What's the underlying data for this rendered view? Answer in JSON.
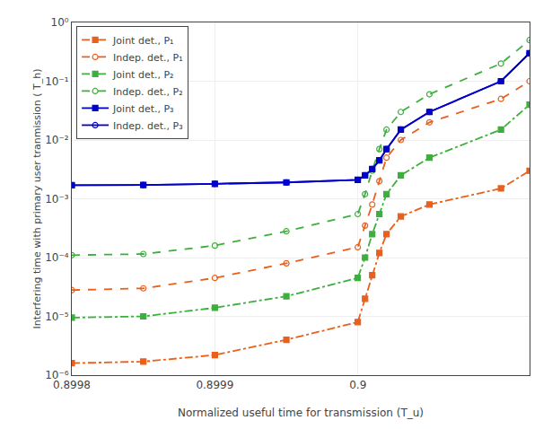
{
  "chart_data": {
    "type": "line",
    "xlabel": "Normalized useful time for transmission (T_u)",
    "ylabel": "Interfering time with primary user tranmission ( T_h)",
    "log": "y",
    "grid": true,
    "legend": "upper left",
    "xlim": [
      0.8998,
      0.90012
    ],
    "ylim": [
      1e-06,
      1.0
    ],
    "xticks": [
      0.8998,
      0.8999,
      0.9
    ],
    "yticks": [
      {
        "value": 1e-06,
        "label": "10⁻⁶"
      },
      {
        "value": 1e-05,
        "label": "10⁻⁵"
      },
      {
        "value": 0.0001,
        "label": "10⁻⁴"
      },
      {
        "value": 0.001,
        "label": "10⁻³"
      },
      {
        "value": 0.01,
        "label": "10⁻²"
      },
      {
        "value": 0.1,
        "label": "10⁻¹"
      },
      {
        "value": 1,
        "label": "10⁰"
      }
    ],
    "x": [
      0.8998,
      0.89985,
      0.8999,
      0.89995,
      0.8999999,
      0.900005,
      0.90001,
      0.900015,
      0.90002,
      0.90003,
      0.90005,
      0.9001,
      0.90012
    ],
    "series": [
      {
        "name": "Joint det., P₁",
        "color": "#e8601c",
        "line_style": "dashdot",
        "marker": "square",
        "values": [
          1.6e-06,
          1.7e-06,
          2.2e-06,
          4e-06,
          8e-06,
          2e-05,
          5e-05,
          0.00012,
          0.00025,
          0.0005,
          0.0008,
          0.0015,
          0.003
        ]
      },
      {
        "name": "Indep. det., P₁",
        "color": "#e8601c",
        "line_style": "dash",
        "marker": "circle-open",
        "values": [
          2.8e-05,
          3e-05,
          4.5e-05,
          8e-05,
          0.00015,
          0.00035,
          0.0008,
          0.002,
          0.005,
          0.01,
          0.02,
          0.05,
          0.1
        ]
      },
      {
        "name": "Joint det., P₂",
        "color": "#3daf3d",
        "line_style": "dashdot",
        "marker": "square",
        "values": [
          9.5e-06,
          1e-05,
          1.4e-05,
          2.2e-05,
          4.5e-05,
          0.0001,
          0.00025,
          0.00055,
          0.0012,
          0.0025,
          0.005,
          0.015,
          0.04
        ]
      },
      {
        "name": "Indep. det., P₂",
        "color": "#3daf3d",
        "line_style": "dash",
        "marker": "circle-open",
        "values": [
          0.00011,
          0.000115,
          0.00016,
          0.00028,
          0.00055,
          0.0012,
          0.003,
          0.007,
          0.015,
          0.03,
          0.06,
          0.2,
          0.5
        ]
      },
      {
        "name": "Joint det., P₃",
        "color": "#0000cc",
        "line_style": "solid",
        "marker": "square",
        "values": [
          0.0017,
          0.00172,
          0.0018,
          0.0019,
          0.0021,
          0.0025,
          0.0032,
          0.0045,
          0.007,
          0.015,
          0.03,
          0.1,
          0.3
        ]
      },
      {
        "name": "Indep. det., P₃",
        "color": "#0000cc",
        "line_style": "solid",
        "marker": "circle-open",
        "values": [
          0.0017,
          0.00172,
          0.0018,
          0.0019,
          0.0021,
          0.0025,
          0.0032,
          0.0045,
          0.007,
          0.015,
          0.03,
          0.1,
          0.3
        ]
      }
    ]
  }
}
